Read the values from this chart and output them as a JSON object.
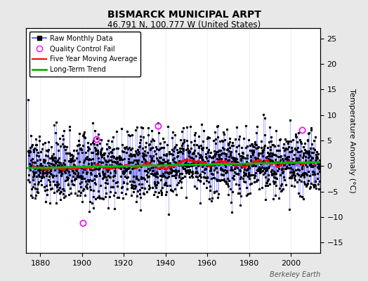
{
  "title": "BISMARCK MUNICIPAL ARPT",
  "subtitle": "46.791 N, 100.777 W (United States)",
  "ylabel": "Temperature Anomaly (°C)",
  "watermark": "Berkeley Earth",
  "xlim": [
    1873,
    2014
  ],
  "ylim": [
    -17,
    27
  ],
  "yticks": [
    -15,
    -10,
    -5,
    0,
    5,
    10,
    15,
    20,
    25
  ],
  "xticks": [
    1880,
    1900,
    1920,
    1940,
    1960,
    1980,
    2000
  ],
  "start_year": 1874,
  "end_year": 2013,
  "background_color": "#e8e8e8",
  "plot_background": "#ffffff",
  "raw_color": "#4444ff",
  "raw_marker_color": "#000000",
  "qc_fail_color": "#ff00ff",
  "moving_avg_color": "#ff0000",
  "trend_color": "#00bb00",
  "seed": 137
}
